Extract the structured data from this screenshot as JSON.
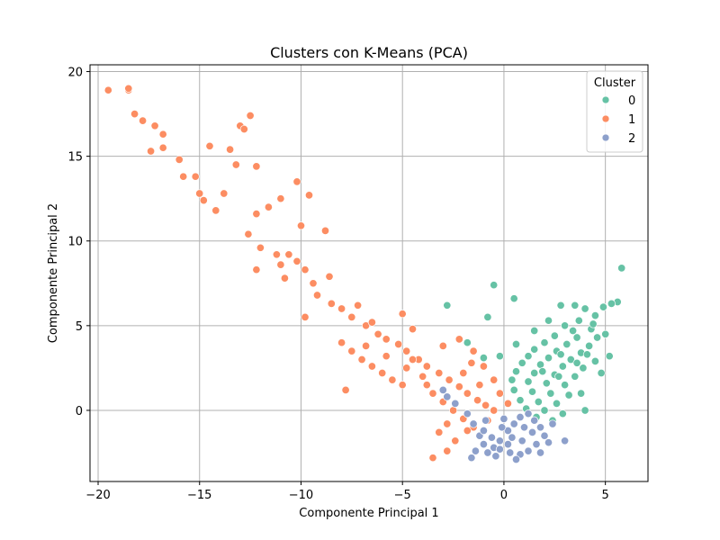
{
  "chart_data": {
    "type": "scatter",
    "title": "Clusters con K-Means (PCA)",
    "xlabel": "Componente Principal 1",
    "ylabel": "Componente Principal 2",
    "xlim": [
      -20.4,
      7.1
    ],
    "ylim": [
      -4.2,
      20.4
    ],
    "xticks": [
      -20,
      -15,
      -10,
      -5,
      0,
      5
    ],
    "yticks": [
      0,
      5,
      10,
      15,
      20
    ],
    "grid": true,
    "legend": {
      "title": "Cluster",
      "position": "top-right"
    },
    "series": [
      {
        "name": "0",
        "color": "#66c2a5",
        "points": [
          [
            5.8,
            8.4
          ],
          [
            5.6,
            6.4
          ],
          [
            5.3,
            6.3
          ],
          [
            4.9,
            6.1
          ],
          [
            4.5,
            5.6
          ],
          [
            4.0,
            6.0
          ],
          [
            3.5,
            6.2
          ],
          [
            2.8,
            6.2
          ],
          [
            3.7,
            5.3
          ],
          [
            3.0,
            5.0
          ],
          [
            4.3,
            4.8
          ],
          [
            2.5,
            4.4
          ],
          [
            3.6,
            4.3
          ],
          [
            4.6,
            4.3
          ],
          [
            2.0,
            4.0
          ],
          [
            3.1,
            3.9
          ],
          [
            4.2,
            3.8
          ],
          [
            1.5,
            3.6
          ],
          [
            2.6,
            3.5
          ],
          [
            3.8,
            3.4
          ],
          [
            1.2,
            3.2
          ],
          [
            2.2,
            3.1
          ],
          [
            3.3,
            3.0
          ],
          [
            4.5,
            2.9
          ],
          [
            0.9,
            2.8
          ],
          [
            1.8,
            2.7
          ],
          [
            2.9,
            2.6
          ],
          [
            3.9,
            2.5
          ],
          [
            0.6,
            2.3
          ],
          [
            1.5,
            2.2
          ],
          [
            2.5,
            2.1
          ],
          [
            3.5,
            2.0
          ],
          [
            0.4,
            1.8
          ],
          [
            1.2,
            1.7
          ],
          [
            2.1,
            1.6
          ],
          [
            3.0,
            1.5
          ],
          [
            0.5,
            1.2
          ],
          [
            1.4,
            1.1
          ],
          [
            2.3,
            1.0
          ],
          [
            3.2,
            0.9
          ],
          [
            0.8,
            0.6
          ],
          [
            1.7,
            0.5
          ],
          [
            2.6,
            0.4
          ],
          [
            1.1,
            0.1
          ],
          [
            2.0,
            0.0
          ],
          [
            2.9,
            -0.2
          ],
          [
            1.6,
            -0.4
          ],
          [
            2.4,
            -0.6
          ],
          [
            4.0,
            0.0
          ],
          [
            5.2,
            3.2
          ],
          [
            5.0,
            4.5
          ],
          [
            4.8,
            2.2
          ],
          [
            3.8,
            1.0
          ],
          [
            -2.8,
            6.2
          ],
          [
            -0.5,
            7.4
          ],
          [
            0.5,
            6.6
          ],
          [
            -0.8,
            5.5
          ],
          [
            0.6,
            3.9
          ],
          [
            -1.0,
            3.1
          ],
          [
            -1.8,
            4.0
          ],
          [
            1.5,
            4.7
          ],
          [
            2.2,
            5.3
          ],
          [
            -0.2,
            3.2
          ],
          [
            2.7,
            2.0
          ],
          [
            3.6,
            2.8
          ],
          [
            4.1,
            3.3
          ],
          [
            1.9,
            2.3
          ],
          [
            2.8,
            3.3
          ],
          [
            3.4,
            4.7
          ],
          [
            4.4,
            5.1
          ]
        ]
      },
      {
        "name": "1",
        "color": "#fc8d62",
        "points": [
          [
            -19.5,
            18.9
          ],
          [
            -18.5,
            18.9
          ],
          [
            -18.5,
            19.0
          ],
          [
            -18.2,
            17.5
          ],
          [
            -17.8,
            17.1
          ],
          [
            -17.2,
            16.8
          ],
          [
            -16.8,
            16.3
          ],
          [
            -17.4,
            15.3
          ],
          [
            -16.8,
            15.5
          ],
          [
            -13.0,
            16.8
          ],
          [
            -12.5,
            17.4
          ],
          [
            -12.8,
            16.6
          ],
          [
            -14.5,
            15.6
          ],
          [
            -13.5,
            15.4
          ],
          [
            -16.0,
            14.8
          ],
          [
            -15.8,
            13.8
          ],
          [
            -15.2,
            13.8
          ],
          [
            -15.0,
            12.8
          ],
          [
            -14.8,
            12.4
          ],
          [
            -14.2,
            11.8
          ],
          [
            -13.8,
            12.8
          ],
          [
            -13.2,
            14.5
          ],
          [
            -12.2,
            14.4
          ],
          [
            -12.6,
            10.4
          ],
          [
            -12.2,
            11.6
          ],
          [
            -11.6,
            12.0
          ],
          [
            -11.0,
            12.5
          ],
          [
            -10.2,
            13.5
          ],
          [
            -9.6,
            12.7
          ],
          [
            -10.0,
            10.9
          ],
          [
            -12.0,
            9.6
          ],
          [
            -11.2,
            9.2
          ],
          [
            -11.0,
            8.6
          ],
          [
            -10.6,
            9.2
          ],
          [
            -10.2,
            8.8
          ],
          [
            -12.2,
            8.3
          ],
          [
            -10.8,
            7.8
          ],
          [
            -9.8,
            8.3
          ],
          [
            -9.4,
            7.5
          ],
          [
            -8.8,
            10.6
          ],
          [
            -8.6,
            7.9
          ],
          [
            -9.2,
            6.8
          ],
          [
            -8.5,
            6.3
          ],
          [
            -9.8,
            5.5
          ],
          [
            -8.0,
            6.0
          ],
          [
            -7.5,
            5.5
          ],
          [
            -7.2,
            6.2
          ],
          [
            -6.8,
            5.0
          ],
          [
            -6.2,
            4.5
          ],
          [
            -5.8,
            4.2
          ],
          [
            -5.2,
            3.9
          ],
          [
            -4.8,
            3.5
          ],
          [
            -4.2,
            3.0
          ],
          [
            -3.8,
            2.6
          ],
          [
            -3.2,
            2.2
          ],
          [
            -2.7,
            1.8
          ],
          [
            -2.2,
            1.4
          ],
          [
            -1.8,
            1.0
          ],
          [
            -1.3,
            0.6
          ],
          [
            -0.9,
            0.3
          ],
          [
            -0.5,
            0.0
          ],
          [
            -8.0,
            4.0
          ],
          [
            -7.5,
            3.5
          ],
          [
            -7.0,
            3.0
          ],
          [
            -6.5,
            2.6
          ],
          [
            -6.0,
            2.2
          ],
          [
            -5.5,
            1.8
          ],
          [
            -5.0,
            1.5
          ],
          [
            -4.5,
            3.0
          ],
          [
            -4.0,
            2.0
          ],
          [
            -3.5,
            1.0
          ],
          [
            -3.0,
            0.5
          ],
          [
            -2.5,
            0.0
          ],
          [
            -2.0,
            -0.5
          ],
          [
            -1.5,
            -1.0
          ],
          [
            -3.2,
            -1.3
          ],
          [
            -2.8,
            -0.8
          ],
          [
            -3.5,
            -2.8
          ],
          [
            -2.8,
            -2.4
          ],
          [
            -2.0,
            2.2
          ],
          [
            -1.5,
            3.5
          ],
          [
            -1.0,
            2.6
          ],
          [
            -0.5,
            1.8
          ],
          [
            -0.2,
            1.0
          ],
          [
            0.2,
            0.4
          ],
          [
            -7.8,
            1.2
          ],
          [
            -6.5,
            5.2
          ],
          [
            -5.0,
            5.7
          ],
          [
            -4.5,
            4.8
          ],
          [
            -3.0,
            3.8
          ],
          [
            -2.2,
            4.2
          ],
          [
            -1.6,
            2.8
          ],
          [
            -1.2,
            1.5
          ],
          [
            -0.8,
            -0.6
          ],
          [
            -1.8,
            -1.2
          ],
          [
            -2.4,
            -1.8
          ],
          [
            -3.8,
            1.5
          ],
          [
            -4.8,
            2.5
          ],
          [
            -5.8,
            3.2
          ],
          [
            -6.8,
            3.8
          ]
        ]
      },
      {
        "name": "2",
        "color": "#8da0cb",
        "points": [
          [
            -3.0,
            1.2
          ],
          [
            -2.8,
            0.8
          ],
          [
            -2.4,
            0.4
          ],
          [
            -1.8,
            -0.2
          ],
          [
            -1.5,
            -0.8
          ],
          [
            -1.2,
            -1.5
          ],
          [
            -1.0,
            -2.0
          ],
          [
            -0.8,
            -2.5
          ],
          [
            -0.5,
            -2.2
          ],
          [
            -0.2,
            -1.8
          ],
          [
            0.2,
            -1.2
          ],
          [
            0.5,
            -0.8
          ],
          [
            0.8,
            -0.4
          ],
          [
            1.2,
            -0.2
          ],
          [
            1.5,
            -0.6
          ],
          [
            1.8,
            -1.0
          ],
          [
            2.0,
            -1.5
          ],
          [
            1.6,
            -2.0
          ],
          [
            1.2,
            -2.4
          ],
          [
            0.8,
            -2.6
          ],
          [
            0.3,
            -2.5
          ],
          [
            -0.2,
            -2.3
          ],
          [
            -0.6,
            -1.6
          ],
          [
            -1.0,
            -1.2
          ],
          [
            -1.4,
            -2.4
          ],
          [
            -1.6,
            -2.8
          ],
          [
            -0.9,
            -0.6
          ],
          [
            0.0,
            -0.5
          ],
          [
            0.4,
            -1.6
          ],
          [
            0.9,
            -1.8
          ],
          [
            1.4,
            -1.3
          ],
          [
            2.4,
            -0.8
          ],
          [
            2.2,
            -1.9
          ],
          [
            3.0,
            -1.8
          ],
          [
            0.6,
            -2.9
          ],
          [
            -0.4,
            -2.7
          ],
          [
            1.0,
            -1.0
          ],
          [
            -0.1,
            -1.0
          ],
          [
            0.2,
            -2.0
          ],
          [
            1.8,
            -2.5
          ]
        ]
      }
    ]
  }
}
